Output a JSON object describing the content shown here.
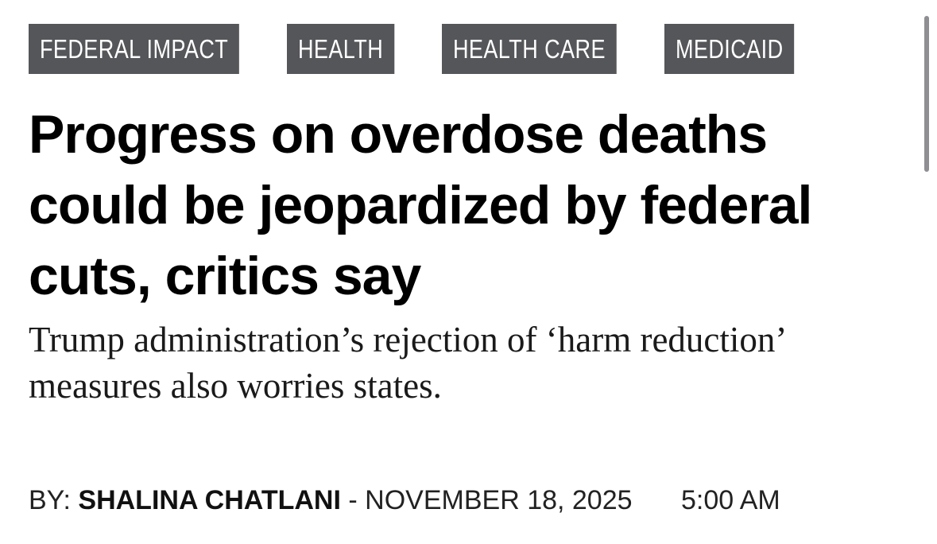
{
  "tags": [
    "FEDERAL IMPACT",
    "HEALTH",
    "HEALTH CARE",
    "MEDICAID"
  ],
  "article": {
    "headline": "Progress on overdose deaths could be jeopardized by federal cuts, critics say",
    "subheadline": "Trump administration’s rejection of ‘harm reduction’ measures also worries states.",
    "byline": {
      "prefix": "BY:",
      "author": "SHALINA CHATLANI",
      "separator": "-",
      "date": "NOVEMBER 18, 2025",
      "time": "5:00 AM"
    }
  },
  "colors": {
    "tag_background": "#55565a",
    "tag_text": "#ffffff",
    "headline": "#000000",
    "scrollbar": "#8e8e93"
  }
}
